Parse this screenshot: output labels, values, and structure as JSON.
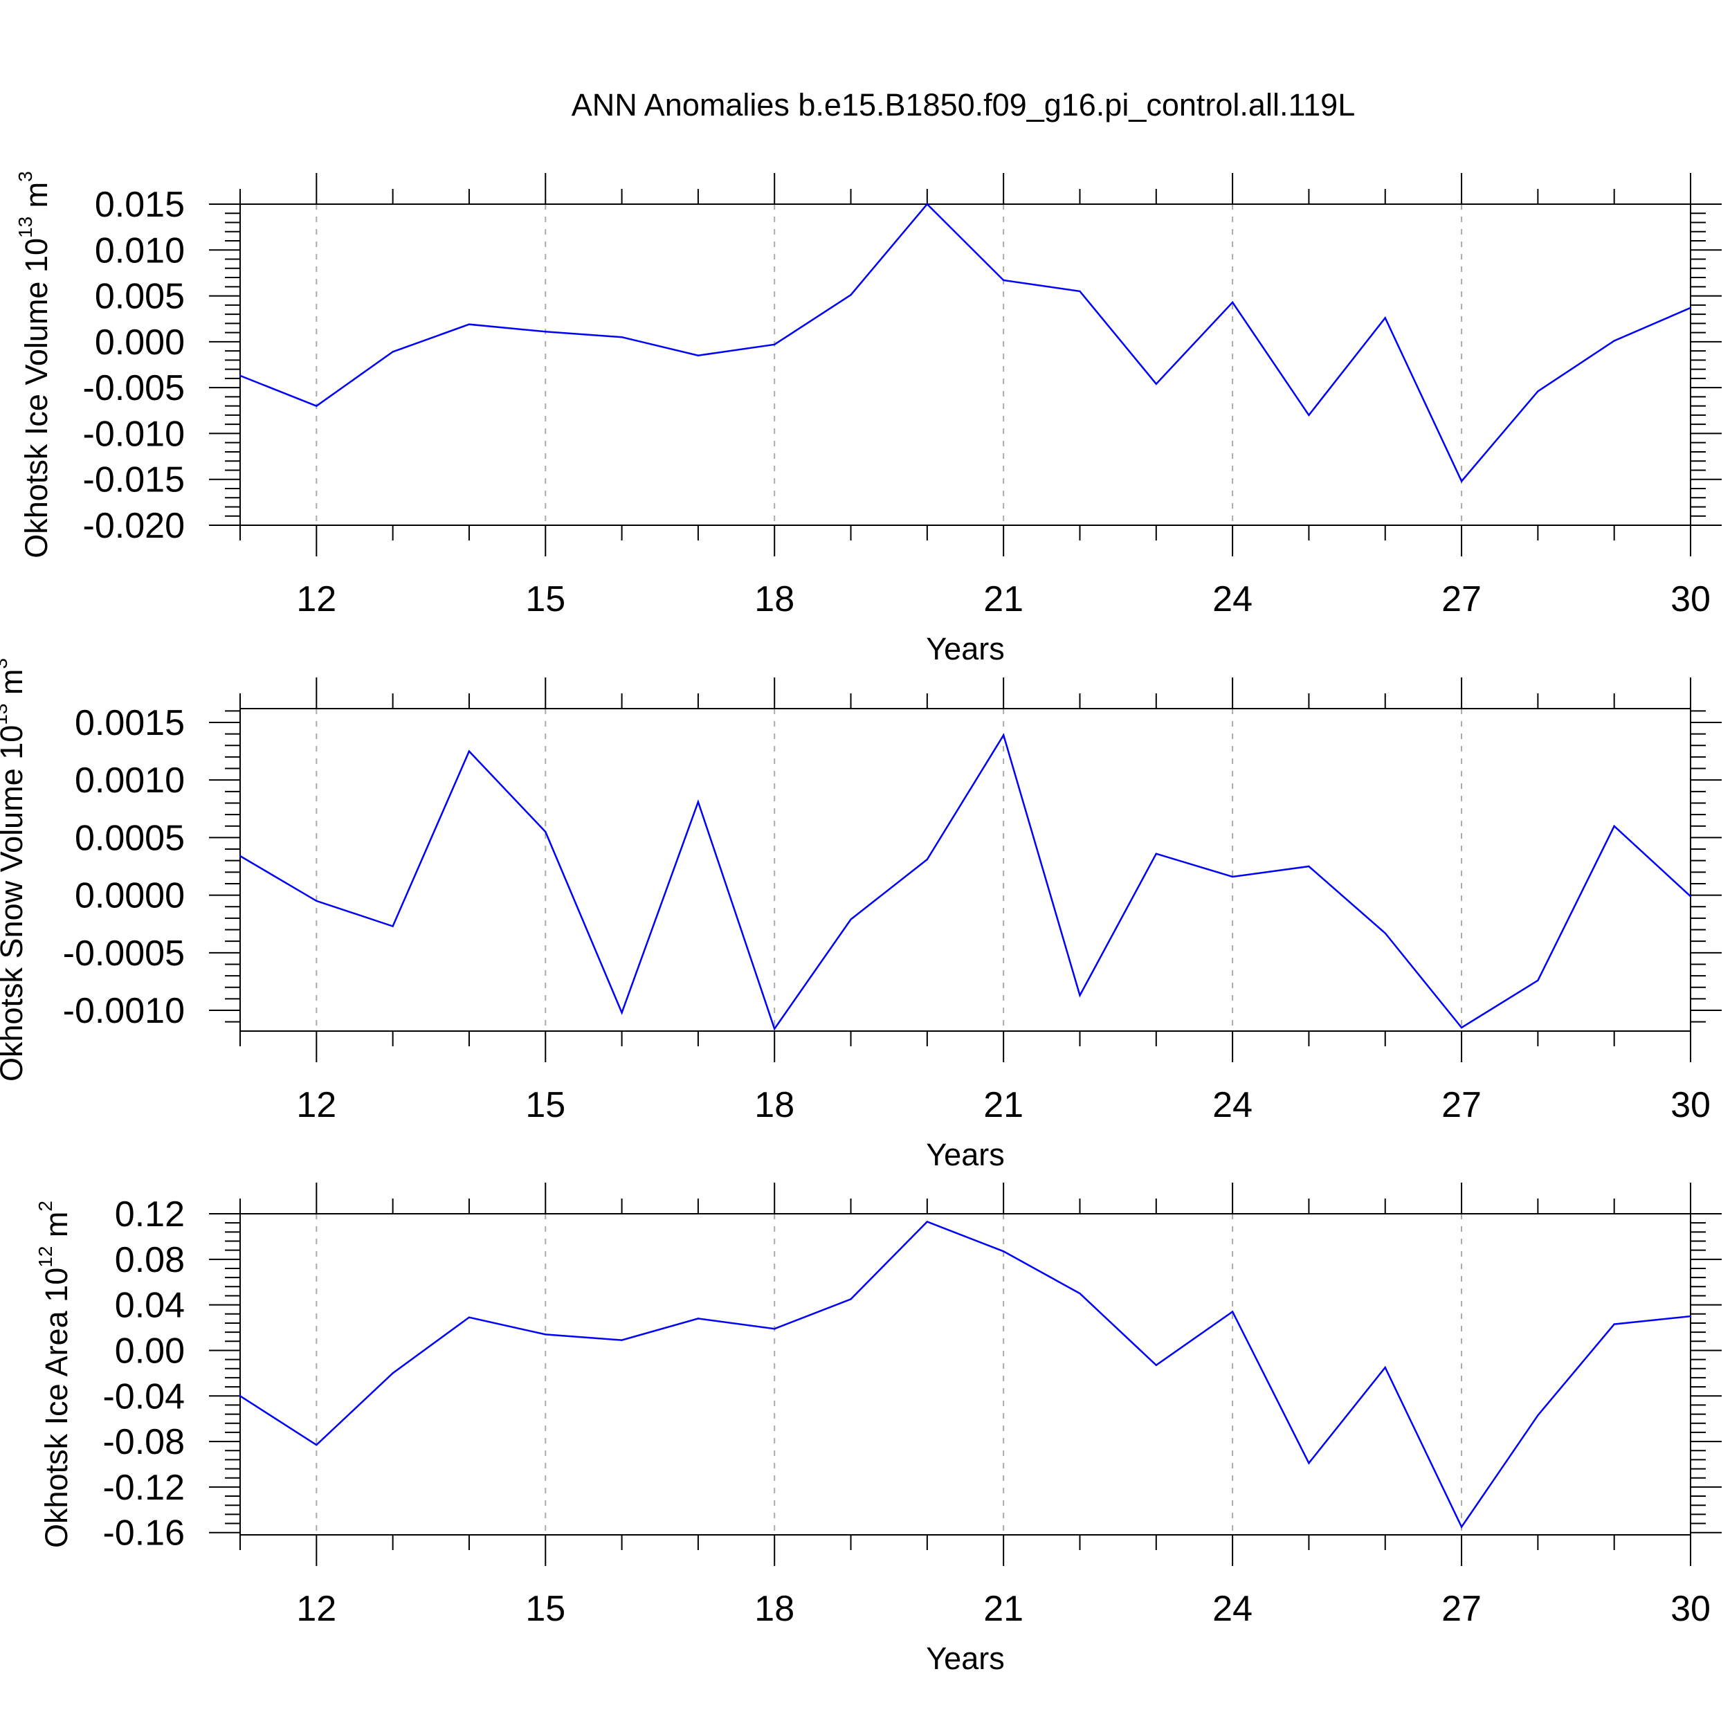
{
  "title": "ANN Anomalies b.e15.B1850.f09_g16.pi_control.all.119L",
  "colors": {
    "line": "#0000ff",
    "axis": "#000000",
    "grid": "#aaaaaa"
  },
  "chart_data": [
    {
      "type": "line",
      "title": "",
      "xlabel": "Years",
      "ylabel": {
        "text": "Okhotsk Ice Volume 10",
        "sup": "13",
        "unit": " m",
        "unit_sup": "3"
      },
      "xlim": [
        11,
        30
      ],
      "ylim": [
        -0.02,
        0.015
      ],
      "xticks": [
        12,
        15,
        18,
        21,
        24,
        27,
        30
      ],
      "xtick_labels": [
        "12",
        "15",
        "18",
        "21",
        "24",
        "27",
        "30"
      ],
      "yticks": [
        0.015,
        0.01,
        0.005,
        0.0,
        -0.005,
        -0.01,
        -0.015,
        -0.02
      ],
      "ytick_labels": [
        "0.015",
        "0.010",
        "0.005",
        "0.000",
        "-0.005",
        "-0.010",
        "-0.015",
        "-0.020"
      ],
      "grid": "vertical dashed at major x ticks",
      "x": [
        11,
        12,
        13,
        14,
        15,
        16,
        17,
        18,
        19,
        20,
        21,
        22,
        23,
        24,
        25,
        26,
        27,
        28,
        29,
        30
      ],
      "series": [
        {
          "values": [
            -0.0037,
            -0.007,
            -0.0011,
            0.0019,
            0.0011,
            0.0005,
            -0.0015,
            -0.0003,
            0.0051,
            0.015,
            0.0067,
            0.0055,
            -0.0046,
            0.0043,
            -0.008,
            0.0026,
            -0.0152,
            -0.0054,
            0.0001,
            0.0037
          ]
        }
      ]
    },
    {
      "type": "line",
      "title": "",
      "xlabel": "Years",
      "ylabel": {
        "text": "Okhotsk Snow Volume 10",
        "sup": "13",
        "unit": " m",
        "unit_sup": "3"
      },
      "xlim": [
        11,
        30
      ],
      "ylim": [
        -0.00118,
        0.00162
      ],
      "xticks": [
        12,
        15,
        18,
        21,
        24,
        27,
        30
      ],
      "xtick_labels": [
        "12",
        "15",
        "18",
        "21",
        "24",
        "27",
        "30"
      ],
      "yticks": [
        0.0015,
        0.001,
        0.0005,
        0.0,
        -0.0005,
        -0.001
      ],
      "ytick_labels": [
        "0.0015",
        "0.0010",
        "0.0005",
        "0.0000",
        "-0.0005",
        "-0.0010"
      ],
      "grid": "vertical dashed at major x ticks",
      "x": [
        11,
        12,
        13,
        14,
        15,
        16,
        17,
        18,
        19,
        20,
        21,
        22,
        23,
        24,
        25,
        26,
        27,
        28,
        29,
        30
      ],
      "series": [
        {
          "values": [
            0.00034,
            -5e-05,
            -0.00027,
            0.00125,
            0.00055,
            -0.00102,
            0.00081,
            -0.00116,
            -0.00021,
            0.00031,
            0.00139,
            -0.00087,
            0.00036,
            0.00016,
            0.00025,
            -0.00033,
            -0.00115,
            -0.00074,
            0.0006,
            -1e-05
          ]
        }
      ]
    },
    {
      "type": "line",
      "title": "",
      "xlabel": "Years",
      "ylabel": {
        "text": "Okhotsk Ice Area 10",
        "sup": "12",
        "unit": " m",
        "unit_sup": "2"
      },
      "xlim": [
        11,
        30
      ],
      "ylim": [
        -0.162,
        0.12
      ],
      "xticks": [
        12,
        15,
        18,
        21,
        24,
        27,
        30
      ],
      "xtick_labels": [
        "12",
        "15",
        "18",
        "21",
        "24",
        "27",
        "30"
      ],
      "yticks": [
        0.12,
        0.08,
        0.04,
        0.0,
        -0.04,
        -0.08,
        -0.12,
        -0.16
      ],
      "ytick_labels": [
        "0.12",
        "0.08",
        "0.04",
        "0.00",
        "-0.04",
        "-0.08",
        "-0.12",
        "-0.16"
      ],
      "grid": "vertical dashed at major x ticks",
      "x": [
        11,
        12,
        13,
        14,
        15,
        16,
        17,
        18,
        19,
        20,
        21,
        22,
        23,
        24,
        25,
        26,
        27,
        28,
        29,
        30
      ],
      "series": [
        {
          "values": [
            -0.04,
            -0.083,
            -0.02,
            0.029,
            0.014,
            0.009,
            0.028,
            0.019,
            0.045,
            0.113,
            0.087,
            0.05,
            -0.013,
            0.034,
            -0.099,
            -0.015,
            -0.155,
            -0.057,
            0.023,
            0.03
          ]
        }
      ]
    }
  ]
}
